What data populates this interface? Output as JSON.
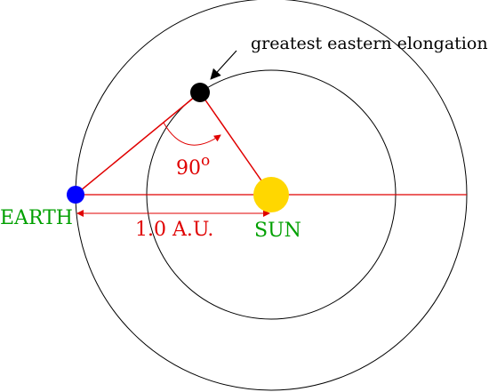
{
  "labels": {
    "annotation": "greatest eastern elongation",
    "angle_value": "90",
    "angle_degree": "o",
    "earth": "EARTH",
    "sun": "SUN",
    "distance": "1.0 A.U."
  },
  "colors": {
    "orbit": "#000000",
    "lines": "#e00000",
    "earth_fill": "#0000ff",
    "earth_text": "#00a000",
    "sun_fill": "#ffd700",
    "sun_text": "#00a000",
    "planet_fill": "#000000",
    "label_red": "#e00000",
    "annotation_text": "#000000"
  }
}
